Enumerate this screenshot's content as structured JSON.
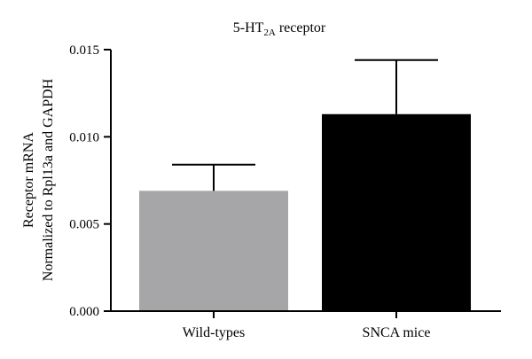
{
  "chart_data": {
    "type": "bar",
    "title": {
      "prefix": "5-HT",
      "subscript": "2A",
      "suffix": " receptor"
    },
    "ylabel_lines": [
      "Receptor mRNA",
      "Normalized to Rpl13a and GAPDH"
    ],
    "xlabel": "",
    "categories": [
      "Wild-types",
      "SNCA mice"
    ],
    "values": [
      0.0069,
      0.0113
    ],
    "error_upper": [
      0.0015,
      0.0031
    ],
    "colors": [
      "#a6a6a8",
      "#000000"
    ],
    "ylim": [
      0,
      0.015
    ],
    "yticks": [
      0,
      0.005,
      0.01,
      0.015
    ],
    "ytick_labels": [
      "0.000",
      "0.005",
      "0.010",
      "0.015"
    ],
    "grid": false,
    "legend": "none"
  }
}
